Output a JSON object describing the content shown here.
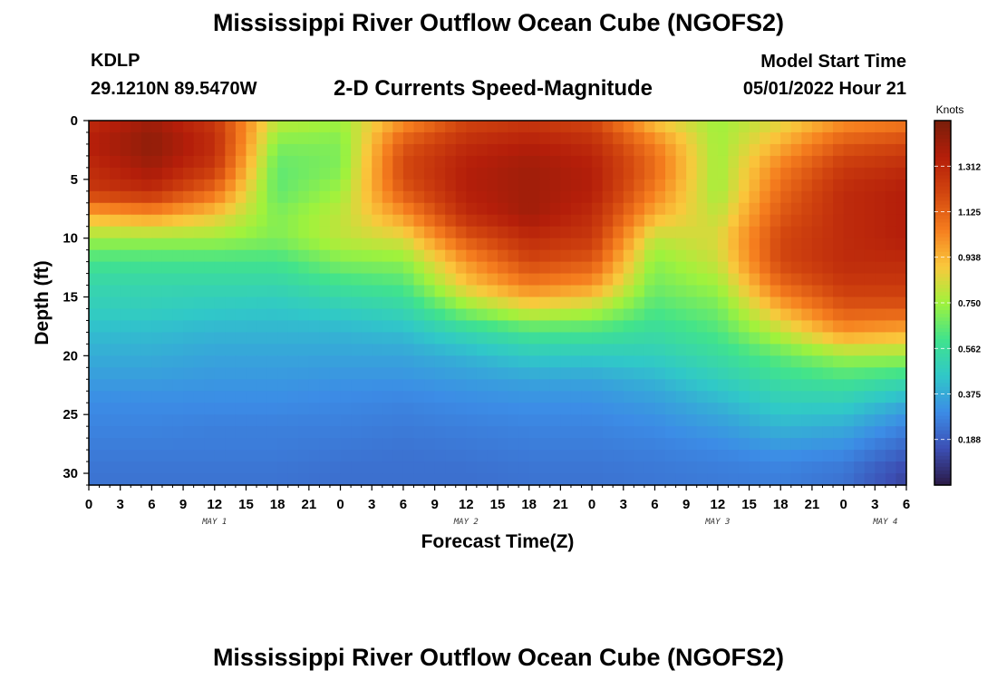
{
  "header": {
    "title": "Mississippi River Outflow Ocean Cube (NGOFS2)",
    "station_id": "KDLP",
    "coordinates": "29.1210N  89.5470W",
    "subtitle": "2-D Currents Speed-Magnitude",
    "model_start_label": "Model Start Time",
    "model_start_value": "05/01/2022 Hour 21"
  },
  "chart_data": {
    "type": "heatmap",
    "title": "2-D Currents Speed-Magnitude",
    "xlabel": "Forecast Time(Z)",
    "ylabel": "Depth (ft)",
    "x_tick_labels": [
      "0",
      "3",
      "6",
      "9",
      "12",
      "15",
      "18",
      "21",
      "0",
      "3",
      "6",
      "9",
      "12",
      "15",
      "18",
      "21",
      "0",
      "3",
      "6",
      "9",
      "12",
      "15",
      "18",
      "21",
      "0",
      "3",
      "6"
    ],
    "x_range_hours": [
      0,
      78
    ],
    "y_ticks": [
      0,
      5,
      10,
      15,
      20,
      25,
      30
    ],
    "y_range_ft": [
      0,
      31
    ],
    "y_inverted": true,
    "day_labels": [
      {
        "label": "MAY 1",
        "hour": 12
      },
      {
        "label": "MAY 2",
        "hour": 36
      },
      {
        "label": "MAY 3",
        "hour": 60
      },
      {
        "label": "MAY 4",
        "hour": 76
      }
    ],
    "colorbar": {
      "unit": "Knots",
      "ticks": [
        0.188,
        0.375,
        0.562,
        0.75,
        0.938,
        1.125,
        1.312
      ],
      "tick_labels": [
        "0.188",
        "0.375",
        "0.562",
        "0.750",
        "0.938",
        "1.125",
        "1.312"
      ],
      "range": [
        0.0,
        1.5
      ],
      "colormap": [
        "#2b1a46",
        "#3c4fb4",
        "#3c8ce6",
        "#30c8c8",
        "#41e38c",
        "#a0f23c",
        "#fac83c",
        "#f57d1e",
        "#d2460f",
        "#b41e0a",
        "#781e0a"
      ]
    },
    "data_description": "speed in knots, rows = depth (ft), columns = forecast hour",
    "surface_layer_depth_ft": [
      0,
      2,
      4,
      6,
      8,
      10,
      12,
      14,
      16,
      18,
      20,
      22,
      24,
      26,
      28,
      30
    ],
    "hours": [
      0,
      6,
      12,
      18,
      24,
      30,
      36,
      42,
      48,
      54,
      60,
      66,
      72,
      78
    ],
    "speed_knots": [
      [
        1.3,
        1.4,
        1.25,
        0.8,
        0.75,
        1.0,
        1.2,
        1.25,
        1.2,
        0.9,
        0.75,
        0.85,
        1.0,
        1.05
      ],
      [
        1.35,
        1.45,
        1.3,
        0.7,
        0.7,
        1.15,
        1.3,
        1.35,
        1.3,
        1.05,
        0.75,
        0.95,
        1.15,
        1.2
      ],
      [
        1.3,
        1.4,
        1.25,
        0.65,
        0.7,
        1.2,
        1.35,
        1.4,
        1.35,
        1.1,
        0.75,
        1.05,
        1.25,
        1.3
      ],
      [
        1.25,
        1.3,
        1.1,
        0.65,
        0.75,
        1.15,
        1.35,
        1.4,
        1.35,
        1.05,
        0.75,
        1.1,
        1.3,
        1.35
      ],
      [
        0.95,
        1.0,
        0.9,
        0.7,
        0.8,
        1.0,
        1.3,
        1.4,
        1.3,
        0.95,
        0.8,
        1.15,
        1.3,
        1.35
      ],
      [
        0.75,
        0.75,
        0.75,
        0.7,
        0.8,
        0.85,
        1.15,
        1.3,
        1.25,
        0.8,
        0.85,
        1.2,
        1.3,
        1.35
      ],
      [
        0.6,
        0.6,
        0.6,
        0.6,
        0.7,
        0.72,
        1.0,
        1.2,
        1.15,
        0.72,
        0.82,
        1.2,
        1.3,
        1.3
      ],
      [
        0.52,
        0.52,
        0.52,
        0.52,
        0.58,
        0.62,
        0.9,
        1.05,
        1.0,
        0.68,
        0.75,
        1.1,
        1.25,
        1.25
      ],
      [
        0.48,
        0.48,
        0.46,
        0.45,
        0.48,
        0.52,
        0.72,
        0.85,
        0.8,
        0.62,
        0.68,
        0.95,
        1.15,
        1.15
      ],
      [
        0.42,
        0.42,
        0.4,
        0.4,
        0.4,
        0.42,
        0.52,
        0.6,
        0.6,
        0.55,
        0.62,
        0.8,
        1.0,
        0.95
      ],
      [
        0.38,
        0.38,
        0.36,
        0.36,
        0.36,
        0.36,
        0.4,
        0.46,
        0.46,
        0.48,
        0.55,
        0.65,
        0.75,
        0.75
      ],
      [
        0.34,
        0.34,
        0.33,
        0.33,
        0.32,
        0.32,
        0.34,
        0.36,
        0.36,
        0.4,
        0.48,
        0.56,
        0.6,
        0.55
      ],
      [
        0.3,
        0.3,
        0.3,
        0.3,
        0.29,
        0.28,
        0.3,
        0.31,
        0.31,
        0.34,
        0.4,
        0.48,
        0.48,
        0.38
      ],
      [
        0.28,
        0.28,
        0.27,
        0.27,
        0.27,
        0.26,
        0.27,
        0.28,
        0.28,
        0.3,
        0.34,
        0.4,
        0.38,
        0.28
      ],
      [
        0.26,
        0.26,
        0.26,
        0.26,
        0.25,
        0.24,
        0.25,
        0.26,
        0.26,
        0.27,
        0.29,
        0.32,
        0.3,
        0.2
      ],
      [
        0.24,
        0.24,
        0.24,
        0.24,
        0.23,
        0.23,
        0.23,
        0.24,
        0.24,
        0.25,
        0.26,
        0.27,
        0.24,
        0.12
      ]
    ],
    "grid": false
  }
}
